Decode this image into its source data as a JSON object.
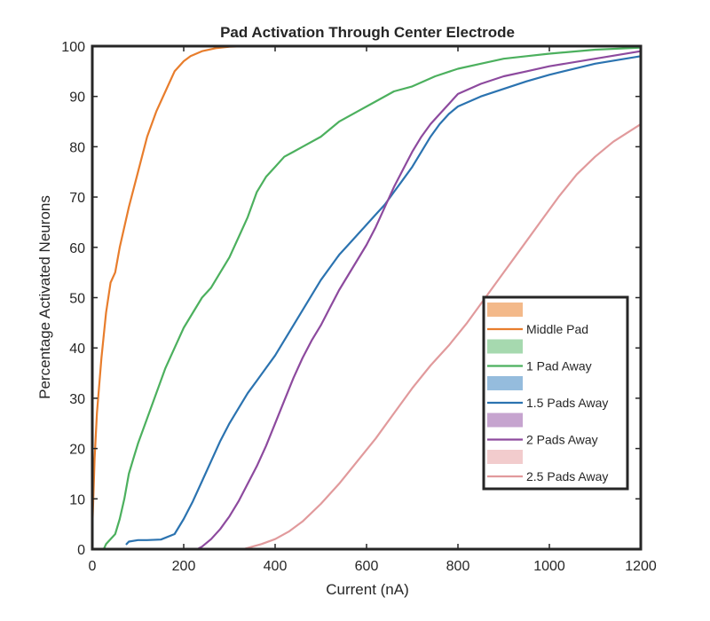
{
  "chart_data": {
    "type": "line",
    "title": "Pad Activation Through Center Electrode",
    "xlabel": "Current (nA)",
    "ylabel": "Percentage Activated Neurons",
    "xlim": [
      0,
      1200
    ],
    "ylim": [
      0,
      100
    ],
    "xticks": [
      0,
      200,
      400,
      600,
      800,
      1000,
      1200
    ],
    "yticks": [
      0,
      10,
      20,
      30,
      40,
      50,
      60,
      70,
      80,
      90,
      100
    ],
    "grid": false,
    "legend_position": "bottom-right",
    "series": [
      {
        "name": "Middle Pad",
        "color": "#E87D2C",
        "shade_color": "#F3B98A",
        "x": [
          0,
          5,
          10,
          20,
          30,
          40,
          50,
          60,
          80,
          100,
          120,
          140,
          160,
          180,
          200,
          215,
          240,
          270,
          300,
          340
        ],
        "y": [
          4,
          18,
          27,
          38,
          47,
          53,
          55,
          60,
          68,
          75,
          82,
          87,
          91,
          95,
          97,
          98,
          99,
          99.6,
          99.9,
          100
        ]
      },
      {
        "name": "1 Pad Away",
        "color": "#4CB05E",
        "shade_color": "#A6D9AF",
        "x": [
          25,
          30,
          50,
          60,
          70,
          80,
          90,
          100,
          120,
          140,
          160,
          180,
          200,
          220,
          240,
          260,
          280,
          300,
          320,
          340,
          360,
          380,
          400,
          420,
          440,
          460,
          500,
          540,
          580,
          620,
          660,
          700,
          750,
          800,
          850,
          900,
          950,
          1000,
          1100,
          1200
        ],
        "y": [
          0,
          1,
          3,
          6,
          10,
          15,
          18,
          21,
          26,
          31,
          36,
          40,
          44,
          47,
          50,
          52,
          55,
          58,
          62,
          66,
          71,
          74,
          76,
          78,
          79,
          80,
          82,
          85,
          87,
          89,
          91,
          92,
          94,
          95.5,
          96.5,
          97.5,
          98,
          98.5,
          99.3,
          99.7
        ]
      },
      {
        "name": "1.5 Pads Away",
        "color": "#2B73B0",
        "shade_color": "#95BCDD",
        "x": [
          75,
          80,
          100,
          120,
          150,
          180,
          200,
          220,
          240,
          260,
          280,
          300,
          320,
          340,
          360,
          380,
          400,
          420,
          440,
          460,
          480,
          500,
          520,
          540,
          560,
          580,
          600,
          620,
          640,
          660,
          680,
          700,
          720,
          740,
          760,
          780,
          800,
          850,
          900,
          950,
          1000,
          1100,
          1200
        ],
        "y": [
          1,
          1.5,
          1.8,
          1.8,
          1.9,
          3,
          6,
          9.5,
          13.5,
          17.5,
          21.5,
          25,
          28,
          31,
          33.5,
          36,
          38.5,
          41.5,
          44.5,
          47.5,
          50.5,
          53.5,
          56,
          58.5,
          60.5,
          62.5,
          64.5,
          66.5,
          68.5,
          71,
          73.5,
          76,
          79,
          82,
          84.5,
          86.5,
          88,
          90,
          91.5,
          93,
          94.3,
          96.5,
          98
        ]
      },
      {
        "name": "2 Pads Away",
        "color": "#8D4A9E",
        "shade_color": "#C6A4CF",
        "x": [
          230,
          240,
          260,
          280,
          300,
          320,
          340,
          360,
          380,
          400,
          420,
          440,
          460,
          480,
          500,
          520,
          540,
          560,
          580,
          600,
          620,
          640,
          660,
          680,
          700,
          720,
          740,
          760,
          780,
          800,
          850,
          900,
          950,
          1000,
          1100,
          1200
        ],
        "y": [
          0,
          0.5,
          2,
          4,
          6.5,
          9.5,
          13,
          16.5,
          20.5,
          25,
          29.5,
          34,
          38,
          41.5,
          44.5,
          48,
          51.5,
          54.5,
          57.5,
          60.5,
          64,
          68,
          72,
          75.5,
          79,
          82,
          84.5,
          86.5,
          88.5,
          90.5,
          92.5,
          94,
          95,
          96,
          97.5,
          99
        ]
      },
      {
        "name": "2.5 Pads Away",
        "color": "#E19A9C",
        "shade_color": "#F2CCCD",
        "x": [
          330,
          350,
          370,
          400,
          430,
          460,
          500,
          540,
          580,
          620,
          660,
          700,
          740,
          780,
          820,
          860,
          900,
          940,
          980,
          1020,
          1060,
          1100,
          1140,
          1200
        ],
        "y": [
          0,
          0.5,
          1,
          2,
          3.5,
          5.5,
          9,
          13,
          17.5,
          22,
          27,
          32,
          36.5,
          40.5,
          45,
          50,
          55,
          60,
          65,
          70,
          74.5,
          78,
          81,
          84.5
        ]
      }
    ]
  }
}
